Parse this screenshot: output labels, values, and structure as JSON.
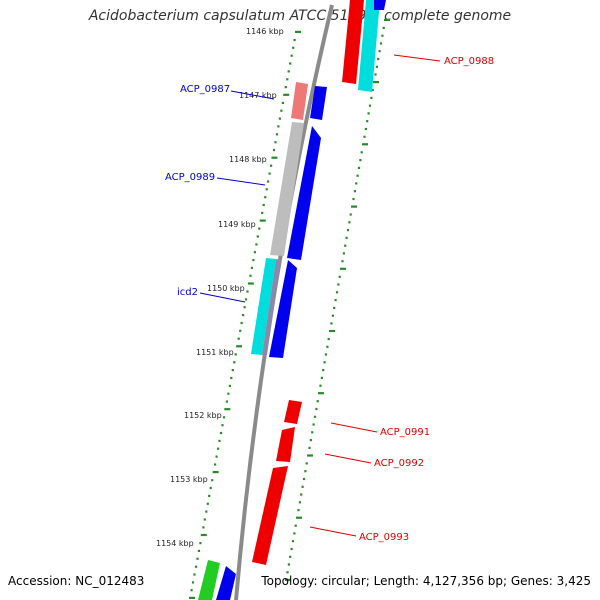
{
  "title": "Acidobacterium capsulatum ATCC 51196, complete genome",
  "footer": {
    "accession": "Accession: NC_012483",
    "summary": "Topology: circular; Length: 4,127,356 bp; Genes: 3,425"
  },
  "colors": {
    "forward_label": "#0000cc",
    "reverse_label": "#dd0000",
    "backbone": "#8a8a8a",
    "tick": "#2a8a2a",
    "blue_gene": "#0000ee",
    "red_gene": "#ee0000",
    "cyan_gene": "#00dddd",
    "gray_gene": "#aaaaaa",
    "pink_gene": "#ee7777",
    "green_gene": "#22cc22"
  },
  "kbp_ticks": [
    "1146 kbp",
    "1147 kbp",
    "1148 kbp",
    "1149 kbp",
    "1150 kbp",
    "1151 kbp",
    "1152 kbp",
    "1153 kbp",
    "1154 kbp"
  ],
  "gene_labels": [
    {
      "text": "ACP_0987",
      "strand": "forward"
    },
    {
      "text": "ACP_0989",
      "strand": "forward"
    },
    {
      "text": "icd2",
      "strand": "forward"
    },
    {
      "text": "ACP_0988",
      "strand": "reverse"
    },
    {
      "text": "ACP_0991",
      "strand": "reverse"
    },
    {
      "text": "ACP_0992",
      "strand": "reverse"
    },
    {
      "text": "ACP_0993",
      "strand": "reverse"
    }
  ]
}
